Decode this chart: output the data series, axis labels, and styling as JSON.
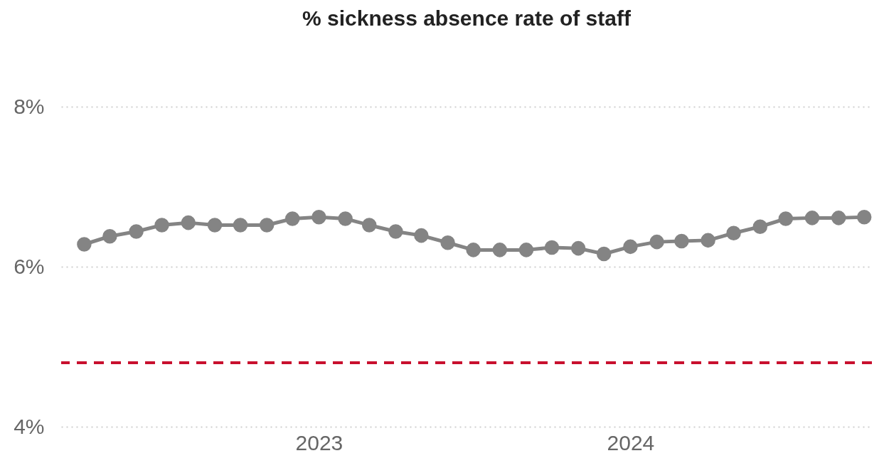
{
  "chart_data": {
    "type": "line",
    "title": "% sickness absence rate of staff",
    "x": [
      "2022-04",
      "2022-05",
      "2022-06",
      "2022-07",
      "2022-08",
      "2022-09",
      "2022-10",
      "2022-11",
      "2022-12",
      "2023-01",
      "2023-02",
      "2023-03",
      "2023-04",
      "2023-05",
      "2023-06",
      "2023-07",
      "2023-08",
      "2023-09",
      "2023-10",
      "2023-11",
      "2023-12",
      "2024-01",
      "2024-02",
      "2024-03",
      "2024-04",
      "2024-05",
      "2024-06",
      "2024-07",
      "2024-08",
      "2024-09",
      "2024-10"
    ],
    "series": [
      {
        "color": "#848484",
        "values": [
          6.28,
          6.38,
          6.44,
          6.52,
          6.55,
          6.52,
          6.52,
          6.52,
          6.6,
          6.62,
          6.6,
          6.52,
          6.44,
          6.39,
          6.3,
          6.21,
          6.21,
          6.21,
          6.24,
          6.23,
          6.16,
          6.25,
          6.31,
          6.32,
          6.33,
          6.42,
          6.5,
          6.6,
          6.61,
          6.61,
          6.62
        ]
      }
    ],
    "xlim": [
      "2022-03-05",
      "2024-10-10"
    ],
    "xticks": [
      "2023",
      "2024"
    ],
    "ylim": [
      4,
      8
    ],
    "yticks": [
      {
        "value": 4,
        "label": "4%"
      },
      {
        "value": 6,
        "label": "6%"
      },
      {
        "value": 8,
        "label": "8%"
      }
    ],
    "grid": "y",
    "marker": "circle",
    "line_style": "solid",
    "ref_lines": [
      {
        "axis": "y",
        "value": 4.8,
        "color": "#c8102e",
        "line_style": "dashed"
      }
    ]
  }
}
